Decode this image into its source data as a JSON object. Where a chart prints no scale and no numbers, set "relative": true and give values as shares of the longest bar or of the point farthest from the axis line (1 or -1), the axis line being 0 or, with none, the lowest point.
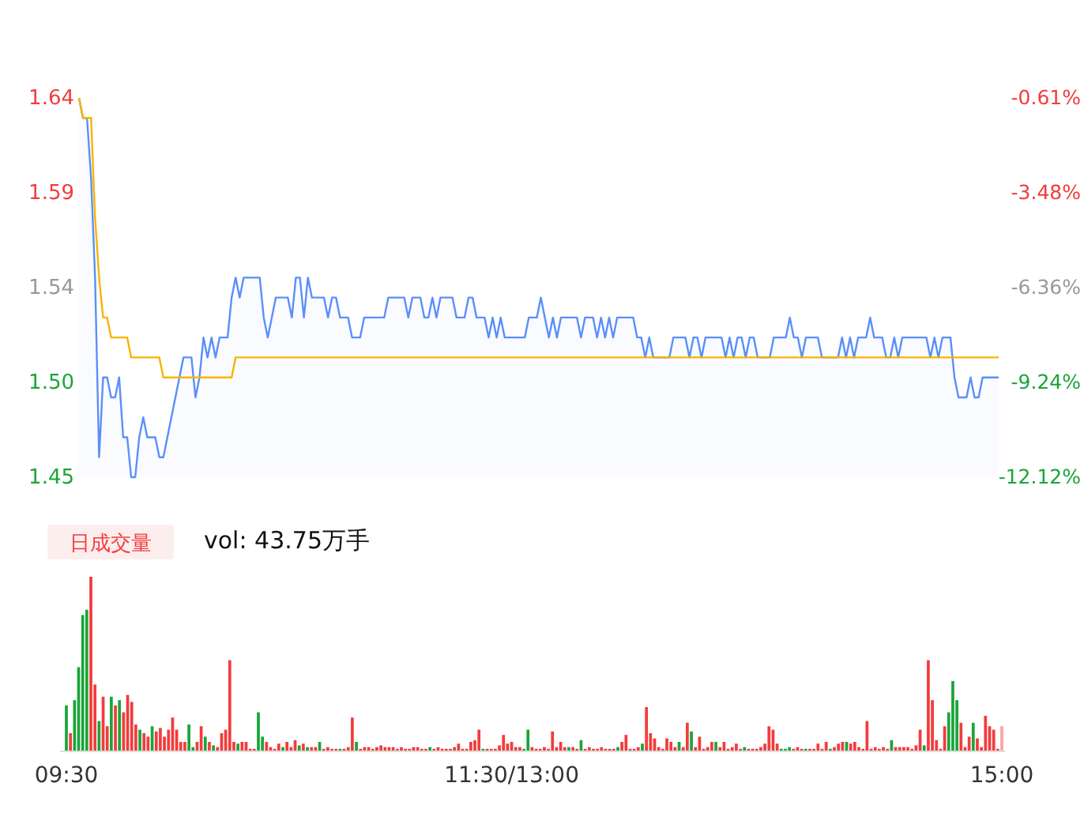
{
  "chart_data": [
    {
      "type": "line",
      "tick_labels": "y",
      "categories": [
        null,
        null,
        null,
        null,
        null,
        null,
        null,
        null,
        null,
        null,
        null,
        null,
        null,
        null,
        null,
        null,
        null,
        null,
        null,
        null,
        null,
        null,
        null,
        null,
        null,
        null,
        null,
        null,
        null,
        null,
        null,
        null,
        null,
        null,
        null,
        null,
        null,
        null,
        null,
        null,
        null,
        null,
        null,
        null,
        null,
        null,
        null,
        null,
        null,
        null,
        null,
        null,
        null,
        null,
        null,
        null,
        null,
        null,
        null,
        null,
        null,
        null,
        null,
        null,
        null,
        null,
        null,
        null,
        null,
        null,
        null,
        null,
        null,
        null,
        null,
        null,
        null,
        null,
        null,
        null,
        null,
        null,
        null,
        null,
        null,
        null,
        null,
        null,
        null,
        null,
        null,
        null,
        null,
        null,
        null,
        null,
        null,
        null,
        null,
        null,
        null,
        null,
        null,
        null,
        null,
        null,
        null,
        null,
        null,
        null,
        null,
        null,
        null,
        null,
        null,
        null,
        null,
        null,
        null,
        null,
        null,
        null,
        null,
        null,
        null,
        null,
        null,
        null,
        null,
        null,
        null,
        null,
        null,
        null,
        null,
        null,
        null,
        null,
        null,
        null,
        null,
        null,
        null,
        null,
        null,
        null,
        null,
        null,
        null,
        null,
        null,
        null,
        null,
        null,
        null,
        null,
        null,
        null,
        null,
        null,
        null,
        null,
        null,
        null,
        null,
        null,
        null,
        null,
        null,
        null,
        null,
        null,
        null,
        null,
        null,
        null,
        null,
        null,
        null,
        null,
        null,
        null,
        null,
        null,
        null,
        null,
        null,
        null,
        null,
        null,
        null,
        null,
        null,
        null,
        null,
        null,
        null,
        null,
        null,
        null,
        null,
        null,
        null,
        null,
        null,
        null,
        null,
        null,
        null,
        null,
        null,
        null,
        null,
        null,
        null,
        null,
        null,
        null,
        null,
        null,
        null,
        null,
        null,
        null,
        null,
        null,
        null,
        null,
        null,
        null
      ],
      "ylim": [
        1.45,
        1.64
      ],
      "yticks": [
        1.64,
        {
          "value": 1.5925,
          "label": "1.59"
        },
        {
          "value": 1.545,
          "label": "1.54"
        },
        {
          "value": 1.4975,
          "label": "1.50"
        },
        1.45
      ],
      "y2lim": [
        -12.12,
        -0.61
      ],
      "y2ticks": [
        {
          "value": -0.61,
          "label": "-0.61%"
        },
        {
          "value": -3.48,
          "label": "-3.48%"
        },
        {
          "value": -6.36,
          "label": "-6.36%"
        },
        {
          "value": -9.24,
          "label": "-9.24%"
        },
        {
          "value": -12.12,
          "label": "-12.12%"
        }
      ],
      "series": [
        {
          "type": "area",
          "color": "#5b8ff9",
          "values": [
            1.64,
            1.63,
            1.63,
            1.6,
            1.55,
            1.46,
            1.5,
            1.5,
            1.49,
            1.49,
            1.5,
            1.47,
            1.47,
            1.45,
            1.45,
            1.47,
            1.48,
            1.47,
            1.47,
            1.47,
            1.46,
            1.46,
            1.47,
            1.48,
            1.49,
            1.5,
            1.51,
            1.51,
            1.51,
            1.49,
            1.5,
            1.52,
            1.51,
            1.52,
            1.51,
            1.52,
            1.52,
            1.52,
            1.54,
            1.55,
            1.54,
            1.55,
            1.55,
            1.55,
            1.55,
            1.55,
            1.53,
            1.52,
            1.53,
            1.54,
            1.54,
            1.54,
            1.54,
            1.53,
            1.55,
            1.55,
            1.53,
            1.55,
            1.54,
            1.54,
            1.54,
            1.54,
            1.53,
            1.54,
            1.54,
            1.53,
            1.53,
            1.53,
            1.52,
            1.52,
            1.52,
            1.53,
            1.53,
            1.53,
            1.53,
            1.53,
            1.53,
            1.54,
            1.54,
            1.54,
            1.54,
            1.54,
            1.53,
            1.54,
            1.54,
            1.54,
            1.53,
            1.53,
            1.54,
            1.53,
            1.54,
            1.54,
            1.54,
            1.54,
            1.53,
            1.53,
            1.53,
            1.54,
            1.54,
            1.53,
            1.53,
            1.53,
            1.52,
            1.53,
            1.52,
            1.53,
            1.52,
            1.52,
            1.52,
            1.52,
            1.52,
            1.52,
            1.53,
            1.53,
            1.53,
            1.54,
            1.53,
            1.52,
            1.53,
            1.52,
            1.53,
            1.53,
            1.53,
            1.53,
            1.53,
            1.52,
            1.53,
            1.53,
            1.53,
            1.52,
            1.53,
            1.52,
            1.53,
            1.52,
            1.53,
            1.53,
            1.53,
            1.53,
            1.53,
            1.52,
            1.52,
            1.51,
            1.52,
            1.51,
            1.51,
            1.51,
            1.51,
            1.51,
            1.52,
            1.52,
            1.52,
            1.52,
            1.51,
            1.52,
            1.52,
            1.51,
            1.52,
            1.52,
            1.52,
            1.52,
            1.52,
            1.51,
            1.52,
            1.51,
            1.52,
            1.52,
            1.51,
            1.52,
            1.52,
            1.51,
            1.51,
            1.51,
            1.51,
            1.52,
            1.52,
            1.52,
            1.52,
            1.53,
            1.52,
            1.52,
            1.51,
            1.52,
            1.52,
            1.52,
            1.52,
            1.51,
            1.51,
            1.51,
            1.51,
            1.51,
            1.52,
            1.51,
            1.52,
            1.51,
            1.52,
            1.52,
            1.52,
            1.53,
            1.52,
            1.52,
            1.52,
            1.51,
            1.51,
            1.52,
            1.51,
            1.52,
            1.52,
            1.52,
            1.52,
            1.52,
            1.52,
            1.52,
            1.51,
            1.52,
            1.51,
            1.52,
            1.52,
            1.52,
            1.5,
            1.49,
            1.49,
            1.49,
            1.5,
            1.49,
            1.49,
            1.5,
            1.5,
            1.5,
            1.5,
            1.5
          ]
        },
        {
          "type": "line",
          "color": "#f7b500",
          "values": [
            1.64,
            1.63,
            1.63,
            1.63,
            1.58,
            1.55,
            1.53,
            1.53,
            1.52,
            1.52,
            1.52,
            1.52,
            1.52,
            1.51,
            1.51,
            1.51,
            1.51,
            1.51,
            1.51,
            1.51,
            1.51,
            1.5,
            1.5,
            1.5,
            1.5,
            1.5,
            1.5,
            1.5,
            1.5,
            1.5,
            1.5,
            1.5,
            1.5,
            1.5,
            1.5,
            1.5,
            1.5,
            1.5,
            1.5,
            1.51,
            1.51,
            1.51,
            1.51,
            1.51,
            1.51,
            1.51,
            1.51,
            1.51,
            1.51,
            1.51,
            1.51,
            1.51,
            1.51,
            1.51,
            1.51,
            1.51,
            1.51,
            1.51,
            1.51,
            1.51,
            1.51,
            1.51,
            1.51,
            1.51,
            1.51,
            1.51,
            1.51,
            1.51,
            1.51,
            1.51,
            1.51,
            1.51,
            1.51,
            1.51,
            1.51,
            1.51,
            1.51,
            1.51,
            1.51,
            1.51,
            1.51,
            1.51,
            1.51,
            1.51,
            1.51,
            1.51,
            1.51,
            1.51,
            1.51,
            1.51,
            1.51,
            1.51,
            1.51,
            1.51,
            1.51,
            1.51,
            1.51,
            1.51,
            1.51,
            1.51,
            1.51,
            1.51,
            1.51,
            1.51,
            1.51,
            1.51,
            1.51,
            1.51,
            1.51,
            1.51,
            1.51,
            1.51,
            1.51,
            1.51,
            1.51,
            1.51,
            1.51,
            1.51,
            1.51,
            1.51,
            1.51,
            1.51,
            1.51,
            1.51,
            1.51,
            1.51,
            1.51,
            1.51,
            1.51,
            1.51,
            1.51,
            1.51,
            1.51,
            1.51,
            1.51,
            1.51,
            1.51,
            1.51,
            1.51,
            1.51,
            1.51,
            1.51,
            1.51,
            1.51,
            1.51,
            1.51,
            1.51,
            1.51,
            1.51,
            1.51,
            1.51,
            1.51,
            1.51,
            1.51,
            1.51,
            1.51,
            1.51,
            1.51,
            1.51,
            1.51,
            1.51,
            1.51,
            1.51,
            1.51,
            1.51,
            1.51,
            1.51,
            1.51,
            1.51,
            1.51,
            1.51,
            1.51,
            1.51,
            1.51,
            1.51,
            1.51,
            1.51,
            1.51,
            1.51,
            1.51,
            1.51,
            1.51,
            1.51,
            1.51,
            1.51,
            1.51,
            1.51,
            1.51,
            1.51,
            1.51,
            1.51,
            1.51,
            1.51,
            1.51,
            1.51,
            1.51,
            1.51,
            1.51,
            1.51,
            1.51,
            1.51,
            1.51,
            1.51,
            1.51,
            1.51,
            1.51,
            1.51,
            1.51,
            1.51,
            1.51,
            1.51,
            1.51,
            1.51,
            1.51,
            1.51,
            1.51,
            1.51,
            1.51,
            1.51,
            1.51,
            1.51,
            1.51,
            1.51,
            1.51,
            1.51,
            1.51,
            1.51,
            1.51,
            1.51,
            1.51
          ]
        }
      ]
    },
    {
      "type": "bar",
      "relative": true,
      "annotations": [
        "日成交量",
        "vol: 43.75万手"
      ],
      "categories": [
        "09:30",
        null,
        null,
        null,
        null,
        null,
        null,
        null,
        null,
        null,
        null,
        null,
        null,
        null,
        null,
        null,
        null,
        null,
        null,
        null,
        null,
        null,
        null,
        null,
        null,
        null,
        null,
        null,
        null,
        null,
        null,
        null,
        null,
        null,
        null,
        null,
        null,
        null,
        null,
        null,
        null,
        null,
        null,
        null,
        null,
        null,
        null,
        null,
        null,
        null,
        null,
        null,
        null,
        null,
        null,
        null,
        null,
        null,
        null,
        null,
        null,
        null,
        null,
        null,
        null,
        null,
        null,
        null,
        null,
        null,
        null,
        null,
        null,
        null,
        null,
        null,
        null,
        null,
        null,
        null,
        null,
        null,
        null,
        null,
        null,
        null,
        null,
        null,
        null,
        null,
        null,
        null,
        null,
        null,
        null,
        null,
        null,
        null,
        null,
        null,
        null,
        null,
        null,
        null,
        null,
        null,
        null,
        null,
        null,
        "11:30/13:00",
        null,
        null,
        null,
        null,
        null,
        null,
        null,
        null,
        null,
        null,
        null,
        null,
        null,
        null,
        null,
        null,
        null,
        null,
        null,
        null,
        null,
        null,
        null,
        null,
        null,
        null,
        null,
        null,
        null,
        null,
        null,
        null,
        null,
        null,
        null,
        null,
        null,
        null,
        null,
        null,
        null,
        null,
        null,
        null,
        null,
        null,
        null,
        null,
        null,
        null,
        null,
        null,
        null,
        null,
        null,
        null,
        null,
        null,
        null,
        null,
        null,
        null,
        null,
        null,
        null,
        null,
        null,
        null,
        null,
        null,
        null,
        null,
        null,
        null,
        null,
        null,
        null,
        null,
        null,
        null,
        null,
        null,
        null,
        null,
        null,
        null,
        null,
        null,
        null,
        null,
        null,
        null,
        null,
        null,
        null,
        null,
        null,
        null,
        null,
        null,
        null,
        null,
        null,
        null,
        null,
        null,
        null,
        null,
        null,
        null,
        null,
        null,
        null,
        null,
        null,
        null,
        null,
        null,
        null,
        "15:00"
      ],
      "values": [
        0.26,
        0.1,
        0.29,
        0.48,
        0.78,
        0.81,
        1,
        0.38,
        0.17,
        0.31,
        0.14,
        0.31,
        0.26,
        0.29,
        0.22,
        0.32,
        0.28,
        0.15,
        0.12,
        0.1,
        0.08,
        0.14,
        0.11,
        0.13,
        0.08,
        0.12,
        0.19,
        0.12,
        0.05,
        0.05,
        0.15,
        0.02,
        0.05,
        0.14,
        0.08,
        0.05,
        0.03,
        0.02,
        0.1,
        0.12,
        0.52,
        0.05,
        0.04,
        0.05,
        0.05,
        0.01,
        0.01,
        0.22,
        0.08,
        0.05,
        0.02,
        0.01,
        0.04,
        0.02,
        0.05,
        0.02,
        0.06,
        0.03,
        0.04,
        0.02,
        0.02,
        0.02,
        0.05,
        0.01,
        0.02,
        0.01,
        0.01,
        0.01,
        0.01,
        0.02,
        0.19,
        0.05,
        0.01,
        0.02,
        0.02,
        0.01,
        0.02,
        0.03,
        0.02,
        0.02,
        0.02,
        0.01,
        0.02,
        0.01,
        0.01,
        0.02,
        0.02,
        0.01,
        0.01,
        0.02,
        0.01,
        0.02,
        0.01,
        0.01,
        0.01,
        0.02,
        0.04,
        0.01,
        0.01,
        0.05,
        0.06,
        0.12,
        0.01,
        0.01,
        0.01,
        0.01,
        0.03,
        0.09,
        0.04,
        0.05,
        0.02,
        0.02,
        0.01,
        0.12,
        0.02,
        0.01,
        0.01,
        0.02,
        0.01,
        0.11,
        0.02,
        0.05,
        0.02,
        0.02,
        0.02,
        0.01,
        0.06,
        0.01,
        0.02,
        0.01,
        0.01,
        0.02,
        0.01,
        0.01,
        0.01,
        0.02,
        0.05,
        0.09,
        0.01,
        0.01,
        0.02,
        0.04,
        0.25,
        0.1,
        0.07,
        0.02,
        0.01,
        0.07,
        0.05,
        0.02,
        0.05,
        0.02,
        0.16,
        0.11,
        0.02,
        0.08,
        0.01,
        0.02,
        0.05,
        0.05,
        0.02,
        0.05,
        0.01,
        0.02,
        0.04,
        0.01,
        0.02,
        0.01,
        0.01,
        0.01,
        0.02,
        0.04,
        0.14,
        0.12,
        0.04,
        0.01,
        0.01,
        0.02,
        0.01,
        0.02,
        0.01,
        0.01,
        0.01,
        0.01,
        0.04,
        0.01,
        0.05,
        0.01,
        0.02,
        0.04,
        0.05,
        0.05,
        0.04,
        0.05,
        0.02,
        0.01,
        0.17,
        0.01,
        0.02,
        0.01,
        0.02,
        0.01,
        0.06,
        0.02,
        0.02,
        0.02,
        0.02,
        0.01,
        0.03,
        0.12,
        0.03,
        0.52,
        0.29,
        0.06,
        0.01,
        0.14,
        0.22,
        0.4,
        0.29,
        0.16,
        0.02,
        0.08,
        0.16,
        0.07,
        0.02,
        0.2,
        0.14,
        0.12,
        0.01,
        0.14
      ],
      "colors": [
        "#1aa53a",
        "#f23c3c",
        "#1aa53a",
        "#1aa53a",
        "#1aa53a",
        "#1aa53a",
        "#f23c3c",
        "#f23c3c",
        "#1aa53a",
        "#f23c3c",
        "#f23c3c",
        "#1aa53a",
        "#f23c3c",
        "#1aa53a",
        "#f23c3c",
        "#f23c3c",
        "#f23c3c",
        "#f23c3c",
        "#1aa53a",
        "#f23c3c",
        "#f23c3c",
        "#1aa53a",
        "#f23c3c",
        "#f23c3c",
        "#f23c3c",
        "#f23c3c",
        "#f23c3c",
        "#f23c3c",
        "#f23c3c",
        "#f23c3c",
        "#1aa53a",
        "#1aa53a",
        "#f23c3c",
        "#f23c3c",
        "#1aa53a",
        "#f23c3c",
        "#1aa53a",
        "#f23c3c",
        "#f23c3c",
        "#f23c3c",
        "#f23c3c",
        "#f23c3c",
        "#1aa53a",
        "#f23c3c",
        "#f23c3c",
        "#f23c3c",
        "#f23c3c",
        "#1aa53a",
        "#1aa53a",
        "#f23c3c",
        "#f23c3c",
        "#f23c3c",
        "#f23c3c",
        "#1aa53a",
        "#f23c3c",
        "#f23c3c",
        "#f23c3c",
        "#1aa53a",
        "#f23c3c",
        "#1aa53a",
        "#f23c3c",
        "#f23c3c",
        "#1aa53a",
        "#f23c3c",
        "#f23c3c",
        "#f23c3c",
        "#f23c3c",
        "#1aa53a",
        "#f23c3c",
        "#f23c3c",
        "#f23c3c",
        "#1aa53a",
        "#f23c3c",
        "#f23c3c",
        "#f23c3c",
        "#f23c3c",
        "#f23c3c",
        "#f23c3c",
        "#f23c3c",
        "#f23c3c",
        "#f23c3c",
        "#f23c3c",
        "#f23c3c",
        "#f23c3c",
        "#f23c3c",
        "#f23c3c",
        "#f23c3c",
        "#f23c3c",
        "#f23c3c",
        "#1aa53a",
        "#f23c3c",
        "#f23c3c",
        "#f23c3c",
        "#f23c3c",
        "#f23c3c",
        "#f23c3c",
        "#f23c3c",
        "#f23c3c",
        "#f23c3c",
        "#f23c3c",
        "#f23c3c",
        "#f23c3c",
        "#1aa53a",
        "#f23c3c",
        "#f23c3c",
        "#f23c3c",
        "#f23c3c",
        "#f23c3c",
        "#f23c3c",
        "#f23c3c",
        "#f23c3c",
        "#f23c3c",
        "#1aa53a",
        "#1aa53a",
        "#f23c3c",
        "#f23c3c",
        "#f23c3c",
        "#f23c3c",
        "#f23c3c",
        "#f23c3c",
        "#f23c3c",
        "#f23c3c",
        "#f23c3c",
        "#1aa53a",
        "#f23c3c",
        "#f23c3c",
        "#1aa53a",
        "#f23c3c",
        "#f23c3c",
        "#f23c3c",
        "#f23c3c",
        "#f23c3c",
        "#f23c3c",
        "#f23c3c",
        "#f23c3c",
        "#1aa53a",
        "#f23c3c",
        "#f23c3c",
        "#f23c3c",
        "#f23c3c",
        "#f23c3c",
        "#1aa53a",
        "#f23c3c",
        "#f23c3c",
        "#f23c3c",
        "#f23c3c",
        "#f23c3c",
        "#f23c3c",
        "#f23c3c",
        "#f23c3c",
        "#1aa53a",
        "#f23c3c",
        "#f23c3c",
        "#1aa53a",
        "#f23c3c",
        "#f23c3c",
        "#f23c3c",
        "#f23c3c",
        "#f23c3c",
        "#1aa53a",
        "#f23c3c",
        "#f23c3c",
        "#f23c3c",
        "#f23c3c",
        "#f23c3c",
        "#f23c3c",
        "#1aa53a",
        "#f23c3c",
        "#f23c3c",
        "#f23c3c",
        "#f23c3c",
        "#f23c3c",
        "#f23c3c",
        "#f23c3c",
        "#f23c3c",
        "#1aa53a",
        "#1aa53a",
        "#1aa53a",
        "#f23c3c",
        "#f23c3c",
        "#f23c3c",
        "#1aa53a",
        "#f23c3c",
        "#f23c3c",
        "#f23c3c",
        "#f23c3c",
        "#f23c3c",
        "#1aa53a",
        "#f23c3c",
        "#f23c3c",
        "#f23c3c",
        "#1aa53a",
        "#f23c3c",
        "#f23c3c",
        "#f23c3c",
        "#f23c3c",
        "#f23c3c",
        "#f23c3c",
        "#f23c3c",
        "#f23c3c",
        "#f23c3c",
        "#f23c3c",
        "#1aa53a",
        "#f23c3c",
        "#f23c3c",
        "#f23c3c",
        "#f23c3c",
        "#f23c3c",
        "#f23c3c",
        "#f23c3c",
        "#1aa53a",
        "#f23c3c",
        "#f23c3c",
        "#f23c3c",
        "#f23c3c",
        "#f23c3c",
        "#1aa53a",
        "#1aa53a",
        "#1aa53a",
        "#f23c3c",
        "#f23c3c",
        "#f23c3c",
        "#1aa53a",
        "#f23c3c",
        "#f23c3c",
        "#f23c3c",
        "#f23c3c",
        "#f23c3c",
        "#f23c3c",
        "#f9a3a3"
      ]
    }
  ]
}
